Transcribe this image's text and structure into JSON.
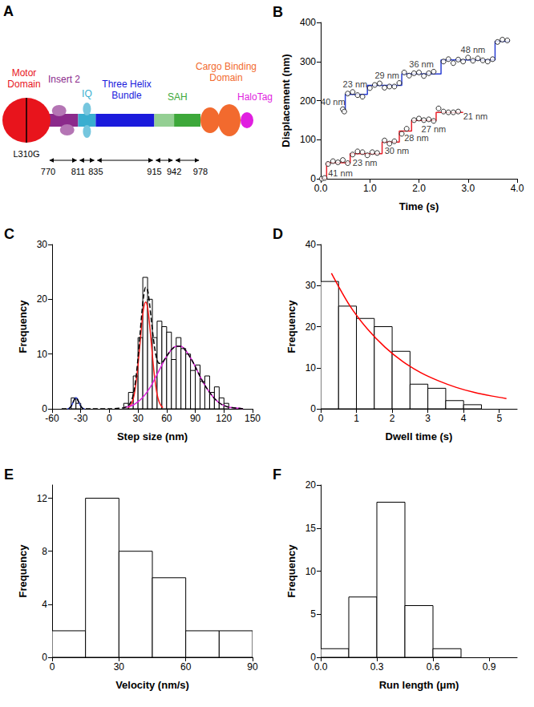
{
  "diagram": {
    "panel": "A",
    "mutation": "L310G",
    "residues": [
      770,
      811,
      835,
      915,
      942,
      978
    ],
    "domains": [
      {
        "label": "Motor Domain",
        "color": "#e8141c"
      },
      {
        "label": "Insert 2",
        "color": "#8b2a8b",
        "range": [
          770,
          811
        ]
      },
      {
        "label": "IQ",
        "color": "#3aaed0",
        "range": [
          811,
          835
        ]
      },
      {
        "label": "Three Helix Bundle",
        "color": "#1a1adc",
        "range": [
          835,
          915
        ]
      },
      {
        "label": "SAH",
        "color": "#3da83a",
        "range": [
          915,
          978
        ]
      },
      {
        "label": "Cargo Binding Domain",
        "color": "#f26a2e"
      },
      {
        "label": "HaloTag",
        "color": "#e01fe0"
      }
    ]
  },
  "chart_data": [
    {
      "panel": "B",
      "type": "scatter",
      "x_label": "Time (s)",
      "y_label": "Displacement (nm)",
      "xlim": [
        0,
        4
      ],
      "xticks": [
        {
          "value": 0,
          "label": "0.0"
        },
        {
          "value": 1,
          "label": "1.0"
        },
        {
          "value": 2,
          "label": "2.0"
        },
        {
          "value": 3,
          "label": "3.0"
        },
        {
          "value": 4,
          "label": "4.0"
        }
      ],
      "ylim": [
        0,
        400
      ],
      "yticks": [
        0,
        100,
        200,
        300,
        400
      ],
      "series": [
        {
          "type": "step",
          "color": "#e8202a",
          "x": [
            0,
            0.12,
            0.6,
            1.25,
            1.6,
            1.85,
            2.35,
            2.9
          ],
          "values": [
            0,
            41,
            64,
            94,
            122,
            149,
            170,
            170
          ]
        },
        {
          "type": "step",
          "color": "#2a3fd4",
          "x": [
            0.45,
            0.5,
            0.95,
            1.65,
            2.45,
            3.55,
            3.85
          ],
          "values": [
            176,
            216,
            239,
            268,
            304,
            352,
            352
          ]
        },
        {
          "type": "scatter",
          "color": "#000000",
          "marker": "open_circle",
          "x": [
            0.02,
            0.08,
            0.15,
            0.25,
            0.35,
            0.45,
            0.55,
            0.65,
            0.75,
            0.85,
            0.95,
            1.05,
            1.15,
            1.3,
            1.4,
            1.5,
            1.65,
            1.75,
            1.9,
            2.0,
            2.1,
            2.2,
            2.3,
            2.4,
            2.5,
            2.6,
            2.7,
            2.8
          ],
          "values": [
            0,
            2,
            38,
            45,
            42,
            48,
            40,
            62,
            70,
            68,
            60,
            68,
            66,
            98,
            90,
            96,
            115,
            128,
            150,
            154,
            150,
            152,
            148,
            180,
            172,
            170,
            170,
            172
          ]
        },
        {
          "type": "scatter",
          "color": "#000000",
          "marker": "open_circle",
          "x": [
            0.45,
            0.48,
            0.55,
            0.65,
            0.75,
            0.85,
            1.0,
            1.1,
            1.2,
            1.3,
            1.4,
            1.5,
            1.6,
            1.7,
            1.8,
            1.9,
            2.0,
            2.1,
            2.2,
            2.3,
            2.5,
            2.6,
            2.7,
            2.8,
            2.9,
            3.0,
            3.1,
            3.2,
            3.3,
            3.4,
            3.5,
            3.6,
            3.7,
            3.8
          ],
          "values": [
            178,
            172,
            218,
            222,
            214,
            210,
            232,
            240,
            244,
            233,
            236,
            236,
            245,
            272,
            264,
            270,
            272,
            263,
            270,
            274,
            300,
            306,
            296,
            305,
            300,
            310,
            302,
            308,
            303,
            300,
            306,
            350,
            356,
            354
          ]
        }
      ],
      "annotations": [
        {
          "text": "41 nm",
          "x": 0.4,
          "y": 14
        },
        {
          "text": "23 nm",
          "x": 0.9,
          "y": 42
        },
        {
          "text": "30 nm",
          "x": 1.55,
          "y": 72
        },
        {
          "text": "28 nm",
          "x": 1.95,
          "y": 104
        },
        {
          "text": "27 nm",
          "x": 2.3,
          "y": 128
        },
        {
          "text": "21 nm",
          "x": 3.15,
          "y": 160
        },
        {
          "text": "40 nm",
          "x": 0.25,
          "y": 196
        },
        {
          "text": "23 nm",
          "x": 0.7,
          "y": 242
        },
        {
          "text": "29 nm",
          "x": 1.35,
          "y": 264
        },
        {
          "text": "36 nm",
          "x": 2.05,
          "y": 294
        },
        {
          "text": "48 nm",
          "x": 3.1,
          "y": 330
        }
      ]
    },
    {
      "panel": "C",
      "type": "histogram",
      "x_label": "Step size (nm)",
      "y_label": "Frequency",
      "xlim": [
        -60,
        150
      ],
      "xticks": [
        -60,
        -30,
        0,
        30,
        60,
        90,
        120,
        150
      ],
      "ylim": [
        0,
        30
      ],
      "yticks": [
        0,
        10,
        20,
        30
      ],
      "color": "#000000",
      "bins": [
        -40,
        -35,
        -30,
        -25,
        -20,
        -15,
        -10,
        -5,
        0,
        5,
        10,
        15,
        20,
        25,
        30,
        35,
        40,
        45,
        50,
        55,
        60,
        65,
        70,
        75,
        80,
        85,
        90,
        95,
        100,
        105,
        110,
        115,
        120,
        125
      ],
      "values": [
        2,
        1,
        0,
        0,
        0,
        0,
        0,
        0,
        0,
        0,
        0,
        1,
        3,
        6,
        13,
        24,
        20,
        13,
        16,
        15,
        14,
        9,
        13,
        11,
        10,
        7,
        8,
        5,
        6,
        3,
        4,
        2,
        1
      ],
      "curves": [
        {
          "color": "#2a3fd4",
          "x": [
            -44,
            -42,
            -40,
            -38,
            -36,
            -35,
            -34,
            -32,
            -30,
            -28,
            -26
          ],
          "values": [
            0,
            0.1,
            0.5,
            1.2,
            1.9,
            2,
            1.9,
            1.2,
            0.5,
            0.1,
            0
          ]
        },
        {
          "color": "#ff1a1a",
          "x": [
            20,
            22,
            24,
            26,
            28,
            30,
            32,
            34,
            36,
            38,
            40,
            42,
            44,
            46,
            48,
            50,
            52,
            54,
            56
          ],
          "values": [
            0.2,
            0.6,
            1.3,
            2.6,
            4.9,
            8,
            11.8,
            15.6,
            18.5,
            19.5,
            18.5,
            15.6,
            11.8,
            8,
            4.9,
            2.6,
            1.3,
            0.6,
            0.2
          ]
        },
        {
          "color": "#e020e0",
          "x": [
            15,
            20,
            25,
            30,
            35,
            40,
            45,
            50,
            55,
            60,
            65,
            70,
            75,
            80,
            85,
            90,
            95,
            100,
            105,
            110,
            115,
            120,
            125,
            130,
            135,
            140
          ],
          "values": [
            0.2,
            0.4,
            0.7,
            1.3,
            2.1,
            3.2,
            4.6,
            6.3,
            8,
            9.6,
            10.8,
            11.4,
            11.4,
            10.6,
            9.3,
            7.7,
            5.9,
            4.3,
            3,
            1.9,
            1.1,
            0.6,
            0.3,
            0.2,
            0.1,
            0
          ]
        },
        {
          "color": "#000000",
          "line_style": "dashed",
          "x": [
            -50,
            -44,
            -42,
            -40,
            -38,
            -36,
            -35,
            -34,
            -32,
            -30,
            -28,
            -26,
            -20,
            0,
            10,
            15,
            20,
            22,
            24,
            26,
            28,
            30,
            32,
            34,
            36,
            38,
            40,
            42,
            44,
            46,
            48,
            50,
            52,
            55,
            60,
            65,
            70,
            75,
            80,
            85,
            90,
            95,
            100,
            105,
            110,
            115,
            120,
            125,
            130,
            135,
            140
          ],
          "values": [
            0,
            0,
            0.1,
            0.5,
            1.2,
            1.9,
            2,
            1.9,
            1.2,
            0.5,
            0.1,
            0,
            0,
            0,
            0.1,
            0.2,
            0.6,
            1.1,
            1.9,
            3.5,
            5.9,
            9.3,
            13.4,
            17.5,
            20.7,
            22.2,
            21.7,
            19.3,
            16.1,
            13,
            10.5,
            8.9,
            8.3,
            8.4,
            9.6,
            10.8,
            11.4,
            11.4,
            10.6,
            9.3,
            7.7,
            5.9,
            4.3,
            3,
            1.9,
            1.1,
            0.6,
            0.3,
            0.2,
            0.1,
            0
          ]
        }
      ]
    },
    {
      "panel": "D",
      "type": "histogram",
      "x_label": "Dwell time (s)",
      "y_label": "Frequency",
      "xlim": [
        0,
        5.5
      ],
      "xticks": [
        0,
        1,
        2,
        3,
        4,
        5
      ],
      "ylim": [
        0,
        40
      ],
      "yticks": [
        0,
        10,
        20,
        30,
        40
      ],
      "color": "#000000",
      "bins": [
        0,
        0.5,
        1,
        1.5,
        2,
        2.5,
        3,
        3.5,
        4,
        4.5
      ],
      "values": [
        31,
        25,
        22,
        20,
        14,
        6,
        5,
        2,
        1
      ],
      "curves": [
        {
          "color": "#ff0000",
          "x": [
            0.3,
            0.8,
            1.3,
            1.8,
            2.3,
            2.8,
            3.3,
            3.8,
            4.3,
            4.8,
            5.2
          ],
          "values": [
            33,
            25.3,
            19.5,
            15,
            11.5,
            8.8,
            6.8,
            5.2,
            4,
            3.1,
            2.5
          ]
        }
      ]
    },
    {
      "panel": "E",
      "type": "histogram",
      "x_label": "Velocity (nm/s)",
      "y_label": "Frequency",
      "xlim": [
        0,
        90
      ],
      "xticks": [
        0,
        30,
        60,
        90
      ],
      "ylim": [
        0,
        13
      ],
      "yticks": [
        0,
        4,
        8,
        12
      ],
      "color": "#000000",
      "bins": [
        0,
        15,
        30,
        45,
        60,
        75,
        90
      ],
      "values": [
        2,
        12,
        8,
        6,
        2,
        2
      ]
    },
    {
      "panel": "F",
      "type": "histogram",
      "x_label": "Run length (μm)",
      "y_label": "Frequency",
      "xlim": [
        0,
        1.05
      ],
      "xticks": [
        {
          "value": 0,
          "label": "0.0"
        },
        0.3,
        0.6,
        0.9
      ],
      "ylim": [
        0,
        20
      ],
      "yticks": [
        0,
        5,
        10,
        15,
        20
      ],
      "color": "#000000",
      "bins": [
        0,
        0.15,
        0.3,
        0.45,
        0.6,
        0.75
      ],
      "values": [
        1,
        7,
        18,
        6,
        1
      ]
    }
  ]
}
